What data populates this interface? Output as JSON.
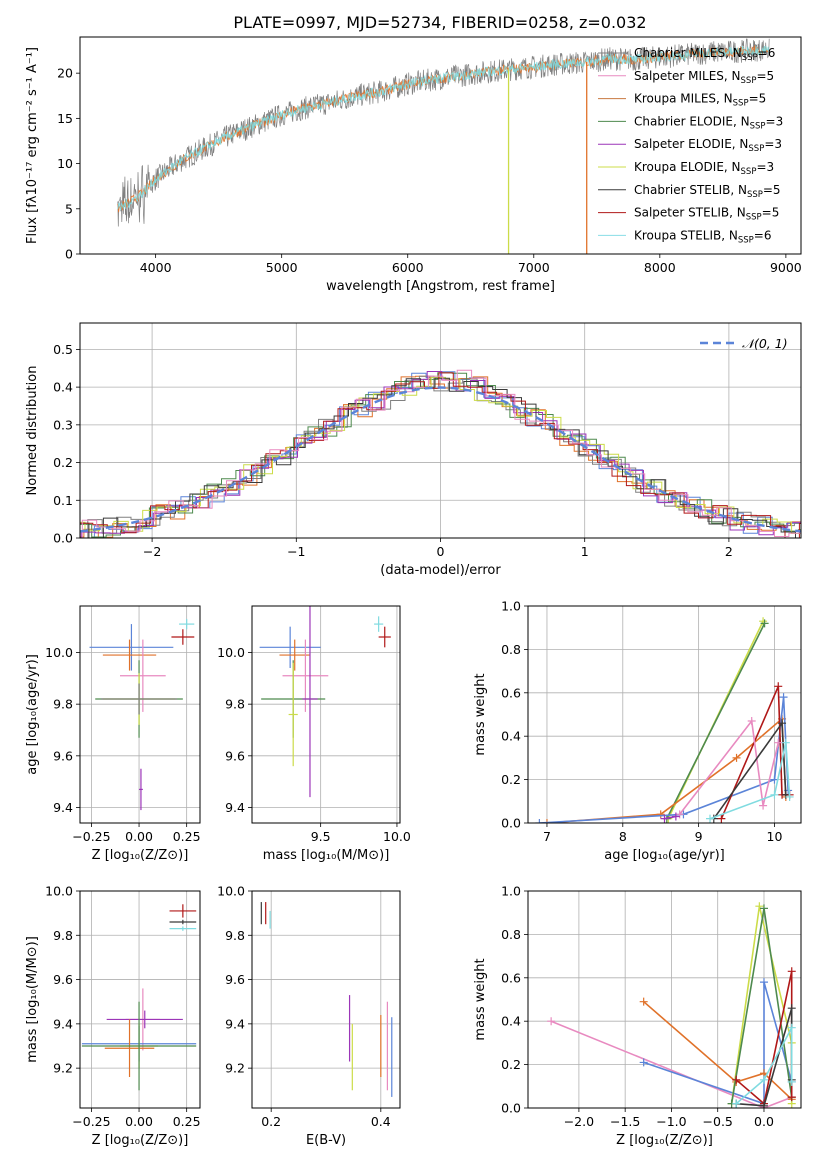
{
  "figure_title": "PLATE=0997, MJD=52734, FIBERID=0258, z=0.032",
  "colors": {
    "grey": "#808080",
    "cyan": "#80dbe0",
    "orange": "#e0722a",
    "blue": "#5b84d8",
    "pink": "#e88ac0",
    "brown": "#c87840",
    "darkgreen": "#4e8a4e",
    "purple": "#9c35b8",
    "lime": "#ccdc48",
    "charcoal": "#3a3a3a",
    "darkred": "#b01818",
    "lightcyan": "#88dde6"
  },
  "chart_data": [
    {
      "id": "spectrum",
      "type": "line",
      "title": "PLATE=0997, MJD=52734, FIBERID=0258, z=0.032",
      "xlabel": "wavelength [Angstrom, rest frame]",
      "ylabel": "Flux [fλ10⁻¹⁷ erg cm⁻² s⁻¹ A⁻¹]",
      "xlim": [
        3400,
        9120
      ],
      "ylim": [
        0,
        24
      ],
      "xticks": [
        4000,
        5000,
        6000,
        7000,
        8000,
        9000
      ],
      "yticks": [
        0,
        5,
        10,
        15,
        20
      ],
      "grid": false,
      "legend_position": "top-right",
      "observed": {
        "x": [
          3700,
          3800,
          3900,
          4000,
          4200,
          4400,
          4600,
          4800,
          5000,
          5200,
          5400,
          5600,
          5800,
          6000,
          6200,
          6400,
          6600,
          6800,
          7000,
          7200,
          7400,
          7600,
          7800,
          8000,
          8200,
          8400,
          8600,
          8800
        ],
        "y": [
          5.0,
          5.8,
          6.8,
          8.3,
          10.3,
          11.8,
          13.2,
          14.3,
          15.4,
          16.2,
          16.8,
          17.5,
          18.0,
          18.8,
          19.3,
          19.7,
          20.1,
          20.4,
          20.7,
          21.0,
          21.2,
          21.6,
          21.5,
          21.8,
          22.0,
          22.3,
          22.4,
          22.6
        ]
      },
      "series": [
        {
          "name": "Chabrier MILES, N",
          "sub": "SSP",
          "value": "6",
          "color": "#808080"
        },
        {
          "name": "Salpeter MILES, N",
          "sub": "SSP",
          "value": "5",
          "color": "#e88ac0"
        },
        {
          "name": "Kroupa MILES, N",
          "sub": "SSP",
          "value": "5",
          "color": "#c87840"
        },
        {
          "name": "Chabrier ELODIE, N",
          "sub": "SSP",
          "value": "3",
          "color": "#4e8a4e"
        },
        {
          "name": "Salpeter ELODIE, N",
          "sub": "SSP",
          "value": "3",
          "color": "#9c35b8"
        },
        {
          "name": "Kroupa ELODIE, N",
          "sub": "SSP",
          "value": "3",
          "color": "#ccdc48"
        },
        {
          "name": "Chabrier STELIB, N",
          "sub": "SSP",
          "value": "5",
          "color": "#3a3a3a"
        },
        {
          "name": "Salpeter STELIB, N",
          "sub": "SSP",
          "value": "5",
          "color": "#b01818"
        },
        {
          "name": "Kroupa STELIB, N",
          "sub": "SSP",
          "value": "6",
          "color": "#88dde6"
        }
      ],
      "drop_lines": [
        {
          "x": 6800,
          "color": "#ccdc48"
        },
        {
          "x": 7420,
          "color": "#e0722a"
        }
      ]
    },
    {
      "id": "residuals",
      "type": "line",
      "xlabel": "(data-model)/error",
      "ylabel": "Normed distribution",
      "xlim": [
        -2.5,
        2.5
      ],
      "ylim": [
        0,
        0.57
      ],
      "xticks": [
        -2,
        -1,
        0,
        1,
        2
      ],
      "xticklabels": [
        "−2",
        "−1",
        "0",
        "1",
        "2"
      ],
      "yticks": [
        0.0,
        0.1,
        0.2,
        0.3,
        0.4,
        0.5
      ],
      "yticklabels": [
        "0.0",
        "0.1",
        "0.2",
        "0.3",
        "0.4",
        "0.5"
      ],
      "grid": true,
      "legend_position": "top-right",
      "reference_label": "𝒩(0, 1)",
      "reference_color": "#5b84d8",
      "series_colors": [
        "#5b84d8",
        "#e0722a",
        "#808080",
        "#4e8a4e",
        "#9c35b8",
        "#ccdc48",
        "#3a3a3a",
        "#b01818",
        "#e88ac0"
      ]
    },
    {
      "id": "age_vs_Z",
      "type": "scatter",
      "xlabel": "Z [log₁₀(Z/Z⊙)]",
      "ylabel": "age  [log₁₀(age/yr)]",
      "xlim": [
        -0.31,
        0.32
      ],
      "ylim": [
        9.34,
        10.18
      ],
      "xticks": [
        -0.25,
        0.0,
        0.25
      ],
      "xticklabels": [
        "−0.25",
        "0.00",
        "0.25"
      ],
      "yticks": [
        9.4,
        9.6,
        9.8,
        10.0
      ],
      "yticklabels": [
        "9.4",
        "9.6",
        "9.8",
        "10.0"
      ],
      "grid": true,
      "points": [
        {
          "x": 0.25,
          "y": 10.11,
          "xerr": 0.04,
          "yerr": 0.02,
          "color": "#80dbe0"
        },
        {
          "x": 0.23,
          "y": 10.06,
          "xerr": 0.06,
          "yerr": 0.03,
          "color": "#b01818"
        },
        {
          "x": -0.04,
          "y": 10.02,
          "xerr": 0.22,
          "yerr": 0.09,
          "color": "#5b84d8"
        },
        {
          "x": -0.05,
          "y": 9.99,
          "xerr": 0.14,
          "yerr": 0.06,
          "color": "#e0722a"
        },
        {
          "x": 0.02,
          "y": 9.91,
          "xerr": 0.12,
          "yerr": 0.14,
          "color": "#e88ac0"
        },
        {
          "x": 0.0,
          "y": 9.82,
          "xerr": 0.23,
          "yerr": 0.15,
          "color": "#4e8a4e"
        },
        {
          "x": 0.01,
          "y": 9.47,
          "xerr": 0.01,
          "yerr": 0.08,
          "color": "#9c35b8"
        },
        {
          "x": 0.0,
          "y": 9.82,
          "xerr": 0.19,
          "yerr": 0.1,
          "color": "#ccdc48"
        },
        {
          "x": 0.0,
          "y": 9.82,
          "xerr": 0.2,
          "yerr": 0.06,
          "color": "#808080"
        }
      ]
    },
    {
      "id": "age_vs_mass",
      "type": "scatter",
      "xlabel": "mass [log₁₀(M/M⊙)]",
      "ylabel": "",
      "xlim": [
        9.05,
        10.02
      ],
      "ylim": [
        9.34,
        10.18
      ],
      "xticks": [
        9.5,
        10.0
      ],
      "xticklabels": [
        "9.5",
        "10.0"
      ],
      "yticks": [
        9.4,
        9.6,
        9.8,
        10.0
      ],
      "yticklabels": [
        "9.4",
        "9.6",
        "9.8",
        "10.0"
      ],
      "grid": true,
      "points": [
        {
          "x": 9.88,
          "y": 10.11,
          "xerr": 0.03,
          "yerr": 0.03,
          "color": "#80dbe0"
        },
        {
          "x": 9.92,
          "y": 10.06,
          "xerr": 0.04,
          "yerr": 0.04,
          "color": "#b01818"
        },
        {
          "x": 9.3,
          "y": 10.02,
          "xerr": 0.2,
          "yerr": 0.08,
          "color": "#5b84d8"
        },
        {
          "x": 9.33,
          "y": 9.99,
          "xerr": 0.1,
          "yerr": 0.06,
          "color": "#e0722a"
        },
        {
          "x": 9.4,
          "y": 9.91,
          "xerr": 0.15,
          "yerr": 0.14,
          "color": "#e88ac0"
        },
        {
          "x": 9.32,
          "y": 9.82,
          "xerr": 0.21,
          "yerr": 0.15,
          "color": "#4e8a4e"
        },
        {
          "x": 9.43,
          "y": 9.82,
          "xerr": 0.05,
          "yerr": 0.38,
          "color": "#9c35b8"
        },
        {
          "x": 9.32,
          "y": 9.76,
          "xerr": 0.03,
          "yerr": 0.2,
          "color": "#ccdc48"
        }
      ]
    },
    {
      "id": "massweight_vs_age",
      "type": "line",
      "xlabel": "age  [log₁₀(age/yr)]",
      "ylabel": "mass weight",
      "xlim": [
        6.75,
        10.35
      ],
      "ylim": [
        0,
        1
      ],
      "xticks": [
        7,
        8,
        9,
        10
      ],
      "xticklabels": [
        "7",
        "8",
        "9",
        "10"
      ],
      "yticks": [
        0.0,
        0.2,
        0.4,
        0.6,
        0.8,
        1.0
      ],
      "yticklabels": [
        "0.0",
        "0.2",
        "0.4",
        "0.6",
        "0.8",
        "1.0"
      ],
      "grid": true,
      "series": [
        {
          "color": "#ccdc48",
          "x": [
            8.6,
            9.85
          ],
          "y": [
            0.02,
            0.93
          ]
        },
        {
          "color": "#4e8a4e",
          "x": [
            8.58,
            9.87
          ],
          "y": [
            0.02,
            0.92
          ]
        },
        {
          "color": "#e0722a",
          "x": [
            7.0,
            8.5,
            9.5,
            10.1,
            10.15
          ],
          "y": [
            0.0,
            0.04,
            0.3,
            0.48,
            0.12
          ]
        },
        {
          "color": "#5b84d8",
          "x": [
            6.9,
            8.8,
            10.0,
            10.12,
            10.18
          ],
          "y": [
            0.0,
            0.04,
            0.2,
            0.58,
            0.15
          ]
        },
        {
          "color": "#b01818",
          "x": [
            9.3,
            10.05,
            10.1,
            10.2
          ],
          "y": [
            0.02,
            0.63,
            0.13,
            0.13
          ]
        },
        {
          "color": "#e88ac0",
          "x": [
            8.75,
            9.7,
            9.85,
            10.05
          ],
          "y": [
            0.04,
            0.47,
            0.08,
            0.37
          ]
        },
        {
          "color": "#3a3a3a",
          "x": [
            9.2,
            10.1,
            10.15
          ],
          "y": [
            0.02,
            0.46,
            0.13
          ]
        },
        {
          "color": "#80dbe0",
          "x": [
            9.15,
            10.0,
            10.15,
            10.2
          ],
          "y": [
            0.02,
            0.13,
            0.37,
            0.12
          ]
        },
        {
          "color": "#9c35b8",
          "x": [
            8.55,
            8.7
          ],
          "y": [
            0.02,
            0.03
          ]
        }
      ]
    },
    {
      "id": "mass_vs_Z",
      "type": "scatter",
      "xlabel": "Z [log₁₀(Z/Z⊙)]",
      "ylabel": "mass [log₁₀(M/M⊙)]",
      "xlim": [
        -0.31,
        0.32
      ],
      "ylim": [
        9.02,
        10.0
      ],
      "xticks": [
        -0.25,
        0.0,
        0.25
      ],
      "xticklabels": [
        "−0.25",
        "0.00",
        "0.25"
      ],
      "yticks": [
        9.2,
        9.4,
        9.6,
        9.8,
        10.0
      ],
      "yticklabels": [
        "9.2",
        "9.4",
        "9.6",
        "9.8",
        "10.0"
      ],
      "grid": true,
      "points": [
        {
          "x": 0.23,
          "y": 9.91,
          "xerr": 0.07,
          "yerr": 0.03,
          "color": "#b01818"
        },
        {
          "x": 0.23,
          "y": 9.86,
          "xerr": 0.07,
          "yerr": 0.01,
          "color": "#3a3a3a"
        },
        {
          "x": 0.23,
          "y": 9.83,
          "xerr": 0.07,
          "yerr": 0.01,
          "color": "#80dbe0"
        },
        {
          "x": 0.02,
          "y": 9.42,
          "xerr": 0.09,
          "yerr": 0.14,
          "color": "#e88ac0"
        },
        {
          "x": 0.03,
          "y": 9.42,
          "xerr": 0.2,
          "yerr": 0.04,
          "color": "#9c35b8"
        },
        {
          "x": 0.0,
          "y": 9.31,
          "xerr": 0.3,
          "yerr": 0.08,
          "color": "#5b84d8"
        },
        {
          "x": 0.0,
          "y": 9.3,
          "xerr": 0.1,
          "yerr": 0.1,
          "color": "#ccdc48"
        },
        {
          "x": -0.05,
          "y": 9.29,
          "xerr": 0.13,
          "yerr": 0.13,
          "color": "#e0722a"
        },
        {
          "x": 0.0,
          "y": 9.3,
          "xerr": 0.3,
          "yerr": 0.2,
          "color": "#4e8a4e"
        }
      ]
    },
    {
      "id": "mass_vs_ebv",
      "type": "scatter",
      "xlabel": "E(B-V)",
      "ylabel": "",
      "xlim": [
        0.165,
        0.435
      ],
      "ylim": [
        9.02,
        10.0
      ],
      "xticks": [
        0.2,
        0.4
      ],
      "xticklabels": [
        "0.2",
        "0.4"
      ],
      "yticks": [
        9.2,
        9.4,
        9.6,
        9.8,
        10.0
      ],
      "yticklabels": [
        "9.2",
        "9.4",
        "9.6",
        "9.8",
        "10.0"
      ],
      "grid": true,
      "points": [
        {
          "x": 0.182,
          "y": 9.9,
          "xerr": 0,
          "yerr": 0.05,
          "color": "#3a3a3a"
        },
        {
          "x": 0.19,
          "y": 9.9,
          "xerr": 0,
          "yerr": 0.05,
          "color": "#b01818"
        },
        {
          "x": 0.198,
          "y": 9.87,
          "xerr": 0,
          "yerr": 0.04,
          "color": "#80dbe0"
        },
        {
          "x": 0.343,
          "y": 9.38,
          "xerr": 0,
          "yerr": 0.15,
          "color": "#9c35b8"
        },
        {
          "x": 0.348,
          "y": 9.25,
          "xerr": 0,
          "yerr": 0.15,
          "color": "#ccdc48"
        },
        {
          "x": 0.4,
          "y": 9.3,
          "xerr": 0,
          "yerr": 0.14,
          "color": "#e0722a"
        },
        {
          "x": 0.412,
          "y": 9.3,
          "xerr": 0,
          "yerr": 0.2,
          "color": "#e88ac0"
        },
        {
          "x": 0.42,
          "y": 9.25,
          "xerr": 0,
          "yerr": 0.18,
          "color": "#5b84d8"
        }
      ]
    },
    {
      "id": "massweight_vs_Z",
      "type": "line",
      "xlabel": "Z [log₁₀(Z/Z⊙)]",
      "ylabel": "mass weight",
      "xlim": [
        -2.55,
        0.4
      ],
      "ylim": [
        0,
        1
      ],
      "xticks": [
        -2.0,
        -1.5,
        -1.0,
        -0.5,
        0.0
      ],
      "xticklabels": [
        "−2.0",
        "−1.5",
        "−1.0",
        "−0.5",
        "0.0"
      ],
      "yticks": [
        0.0,
        0.2,
        0.4,
        0.6,
        0.8,
        1.0
      ],
      "yticklabels": [
        "0.0",
        "0.2",
        "0.4",
        "0.6",
        "0.8",
        "1.0"
      ],
      "grid": true,
      "series": [
        {
          "color": "#e88ac0",
          "x": [
            -2.3,
            0.0,
            0.3
          ],
          "y": [
            0.4,
            0.0,
            0.05
          ]
        },
        {
          "color": "#5b84d8",
          "x": [
            -1.3,
            0.0,
            0.0,
            0.3
          ],
          "y": [
            0.21,
            0.02,
            0.58,
            0.12
          ]
        },
        {
          "color": "#e0722a",
          "x": [
            -1.3,
            -0.3,
            0.0,
            0.3
          ],
          "y": [
            0.49,
            0.12,
            0.16,
            0.04
          ]
        },
        {
          "color": "#ccdc48",
          "x": [
            -0.35,
            -0.05,
            0.3,
            0.3
          ],
          "y": [
            0.02,
            0.93,
            0.3,
            0.02
          ]
        },
        {
          "color": "#4e8a4e",
          "x": [
            -0.35,
            0.0,
            0.3
          ],
          "y": [
            0.02,
            0.92,
            0.05
          ]
        },
        {
          "color": "#b01818",
          "x": [
            -0.3,
            0.0,
            0.3,
            0.3
          ],
          "y": [
            0.13,
            0.02,
            0.63,
            0.05
          ]
        },
        {
          "color": "#3a3a3a",
          "x": [
            -0.3,
            0.0,
            0.3,
            0.3
          ],
          "y": [
            0.02,
            0.01,
            0.46,
            0.13
          ]
        },
        {
          "color": "#80dbe0",
          "x": [
            -0.3,
            0.0,
            0.3,
            0.3
          ],
          "y": [
            0.02,
            0.13,
            0.37,
            0.12
          ]
        }
      ]
    }
  ]
}
